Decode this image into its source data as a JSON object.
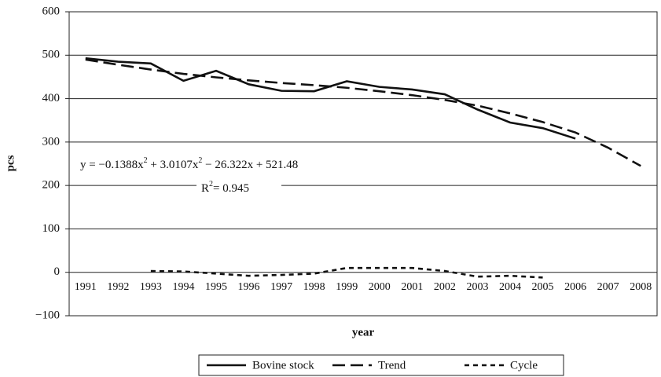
{
  "chart_data": {
    "type": "line",
    "y_label": "pcs",
    "x_label": "year",
    "categories": [
      "1991",
      "1992",
      "1993",
      "1994",
      "1995",
      "1996",
      "1997",
      "1998",
      "1999",
      "2000",
      "2001",
      "2002",
      "2003",
      "2004",
      "2005",
      "2006",
      "2007",
      "2008"
    ],
    "series": [
      {
        "name": "Bovine stock",
        "color": "#111111",
        "dash": "none",
        "values": [
          493,
          485,
          481,
          441,
          464,
          433,
          418,
          417,
          440,
          427,
          421,
          410,
          375,
          345,
          332,
          308,
          null,
          null
        ]
      },
      {
        "name": "Trend",
        "color": "#111111",
        "dash": "16,7",
        "values": [
          490,
          478,
          467,
          457,
          449,
          442,
          436,
          431,
          425,
          417,
          408,
          397,
          384,
          366,
          346,
          322,
          287,
          245
        ]
      },
      {
        "name": "Cycle",
        "color": "#111111",
        "dash": "6,5",
        "values": [
          null,
          null,
          3,
          2,
          -3,
          -8,
          -6,
          -3,
          10,
          10,
          10,
          3,
          -10,
          -8,
          -12,
          null,
          null,
          null
        ]
      }
    ],
    "ylim": [
      -100,
      600
    ],
    "yticks": [
      {
        "value": -100,
        "label": "−100"
      },
      0,
      100,
      200,
      300,
      400,
      500,
      600
    ],
    "grid": true,
    "equation": [
      "y = −0.1388x",
      "2",
      " + 3.0107x",
      "2",
      " − 26.322x + 521.48"
    ],
    "r_squared": [
      "R",
      "2",
      "= 0.945"
    ],
    "legend": "bottom"
  }
}
